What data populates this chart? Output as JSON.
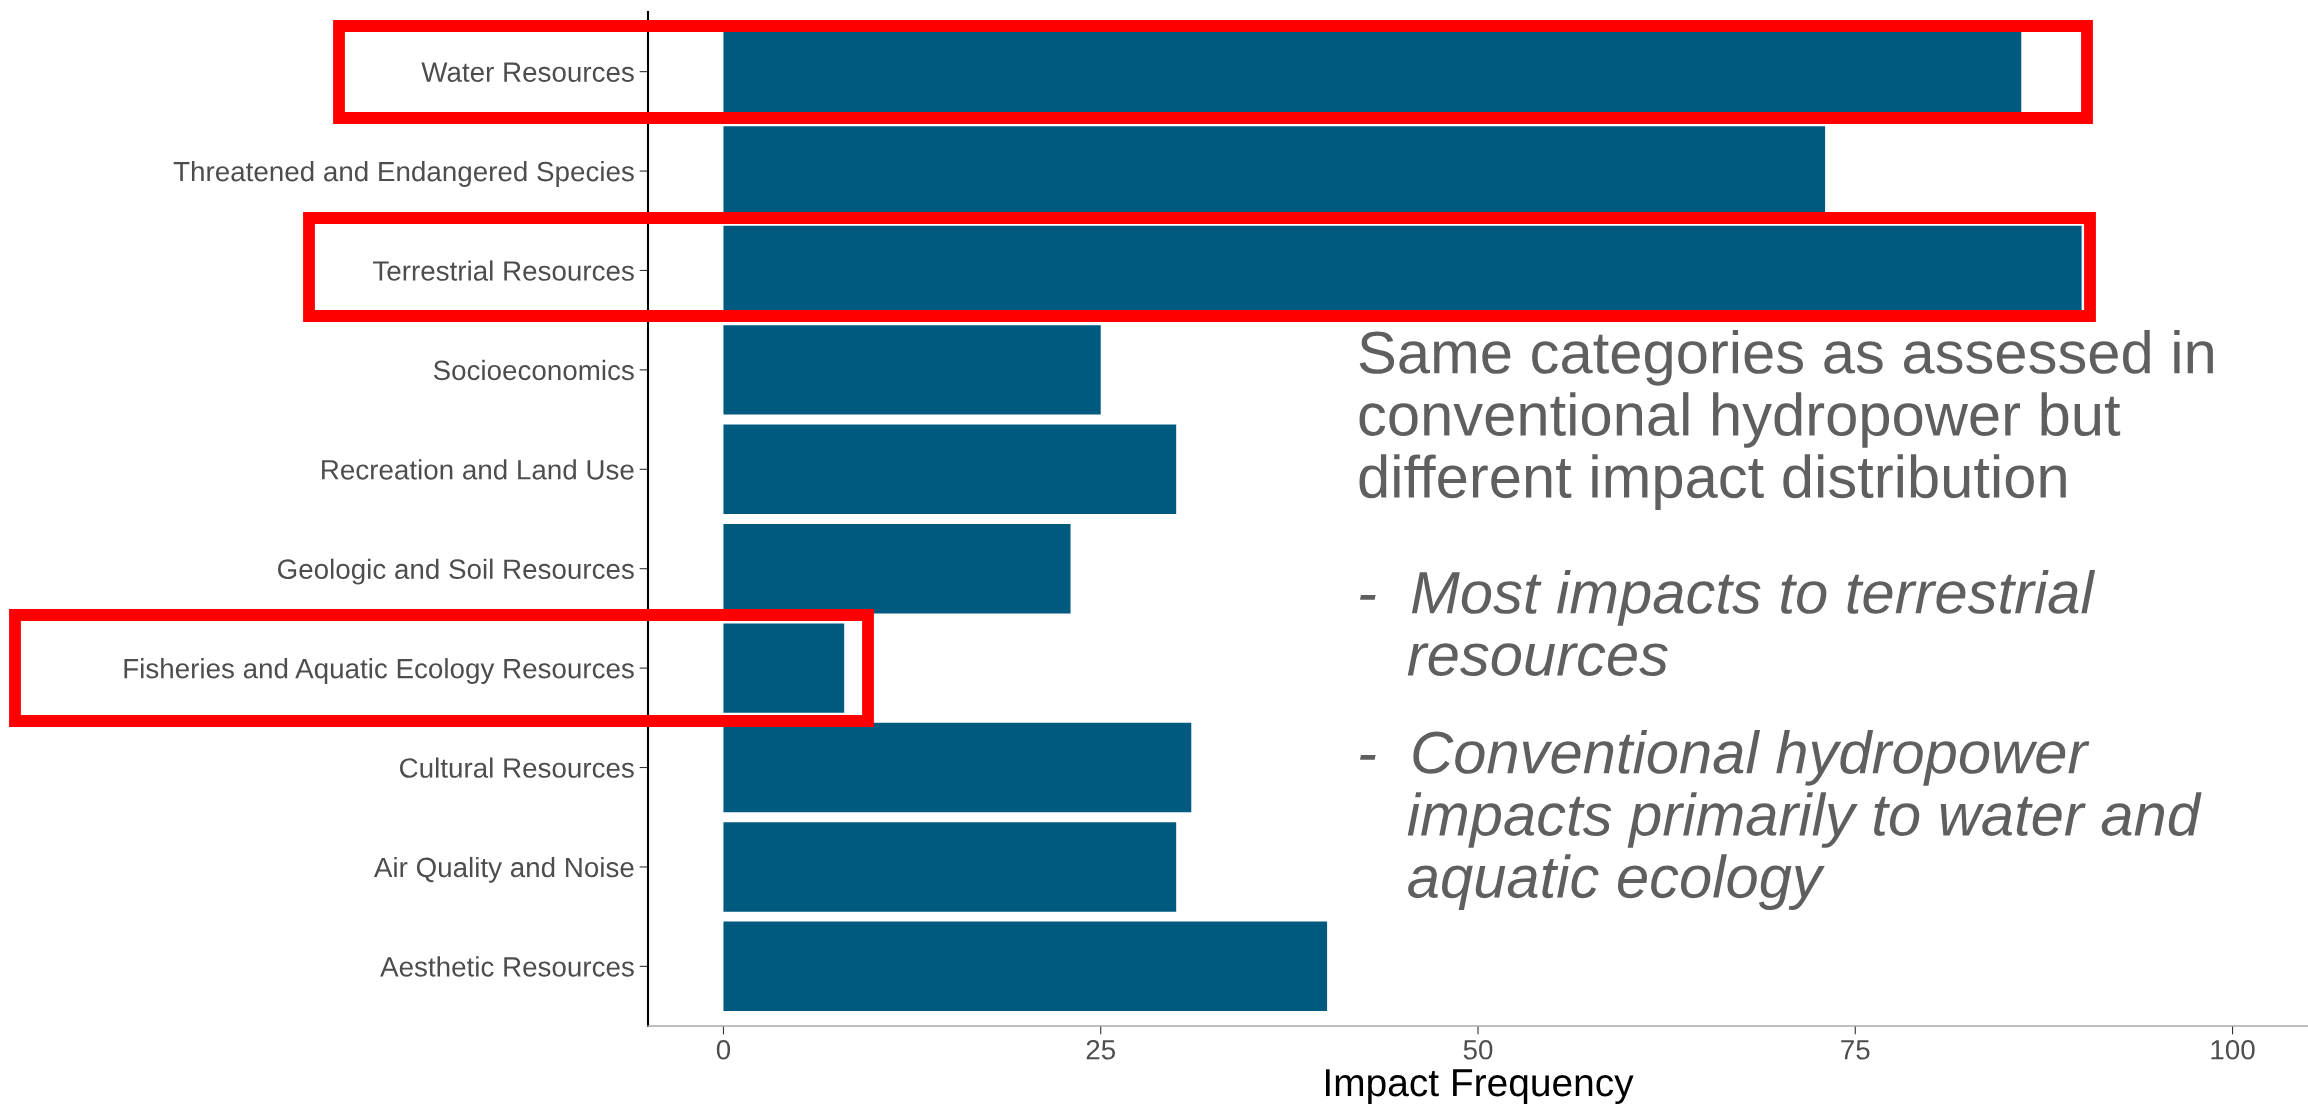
{
  "chart_data": {
    "type": "bar",
    "orientation": "horizontal",
    "xlabel": "Impact Frequency",
    "categories": [
      "Water Resources",
      "Threatened and Endangered Species",
      "Terrestrial Resources",
      "Socioeconomics",
      "Recreation and Land Use",
      "Geologic and Soil Resources",
      "Fisheries and Aquatic Ecology Resources",
      "Cultural Resources",
      "Air Quality and Noise",
      "Aesthetic Resources"
    ],
    "values": [
      86,
      73,
      90,
      25,
      30,
      23,
      8,
      31,
      30,
      40
    ],
    "color": "#005a80",
    "xlim": [
      -5,
      105
    ],
    "xticks": [
      0,
      25,
      50,
      75,
      100
    ],
    "grid": false,
    "annotations": [
      "Same categories as assessed in\nconventional hydropower but\ndifferent impact distribution",
      "-  Most impacts to terrestrial\n   resources",
      "-  Conventional hydropower\n   impacts primarily to water and\n   aquatic ecology"
    ]
  }
}
